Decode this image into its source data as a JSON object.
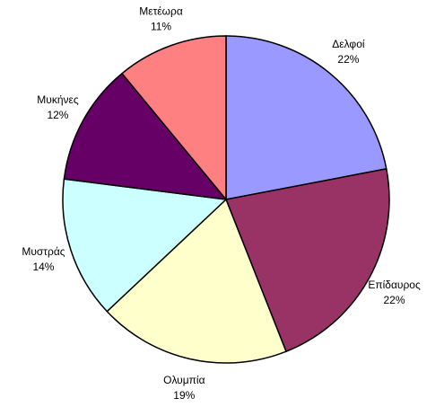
{
  "chart_data": {
    "type": "pie",
    "categories": [
      "Δελφοί",
      "Επίδαυρος",
      "Ολυμπία",
      "Μυστράς",
      "Μυκήνες",
      "Μετέωρα"
    ],
    "values": [
      22,
      22,
      19,
      14,
      12,
      11
    ],
    "value_labels": [
      "22%",
      "22%",
      "19%",
      "14%",
      "12%",
      "11%"
    ],
    "colors": [
      "#9999FF",
      "#993366",
      "#FFFFCC",
      "#CCFFFF",
      "#660066",
      "#FF8080"
    ]
  }
}
